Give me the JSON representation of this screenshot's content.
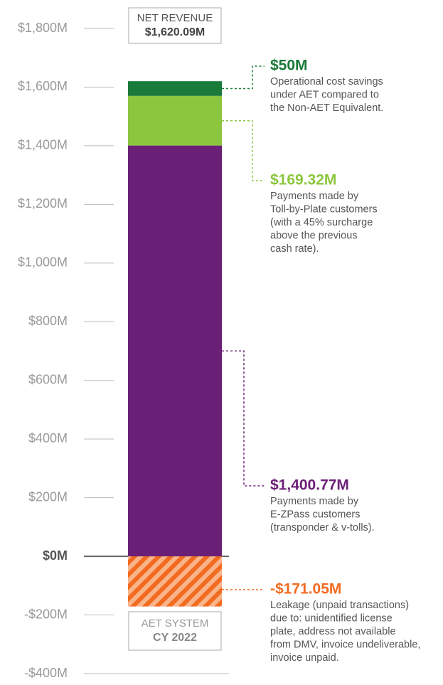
{
  "chart_data": {
    "type": "stacked-bar",
    "total_box": [
      "NET REVENUE",
      "$1,620.09M"
    ],
    "category_box": [
      "AET SYSTEM",
      "CY 2022"
    ],
    "ylim": [
      -400,
      1800
    ],
    "yticks": [
      {
        "value": -400,
        "label": "-$400M"
      },
      {
        "value": -200,
        "label": "-$200M"
      },
      {
        "value": 0,
        "label": "$0M"
      },
      {
        "value": 200,
        "label": "$200M"
      },
      {
        "value": 400,
        "label": "$400M"
      },
      {
        "value": 600,
        "label": "$600M"
      },
      {
        "value": 800,
        "label": "$800M"
      },
      {
        "value": 1000,
        "label": "$1,000M"
      },
      {
        "value": 1200,
        "label": "$1,200M"
      },
      {
        "value": 1400,
        "label": "$1,400M"
      },
      {
        "value": 1600,
        "label": "$1,600M"
      },
      {
        "value": 1800,
        "label": "$1,800M"
      }
    ],
    "series": [
      {
        "color": "#f26b21",
        "hatch": true,
        "values": [
          -171.05
        ],
        "value_labels": [
          "-$171.05M"
        ],
        "description": [
          "Leakage (unpaid transactions)",
          "due to: unidentified license",
          "plate, address not available",
          "from DMV, invoice undeliverable,",
          "invoice unpaid."
        ]
      },
      {
        "color": "#6b2077",
        "values": [
          1400.77
        ],
        "value_labels": [
          "$1,400.77M"
        ],
        "description": [
          "Payments made by",
          "E-ZPass customers",
          "(transponder & v-tolls)."
        ]
      },
      {
        "color": "#8cc63f",
        "values": [
          169.32
        ],
        "value_labels": [
          "$169.32M"
        ],
        "description": [
          "Payments made by",
          "Toll-by-Plate customers",
          "(with a 45% surcharge",
          "above the previous",
          "cash rate)."
        ]
      },
      {
        "color": "#1a7a3a",
        "values": [
          50
        ],
        "value_labels": [
          "$50M"
        ],
        "description": [
          "Operational cost savings",
          "under AET compared to",
          "the Non-AET Equivalent."
        ]
      }
    ]
  }
}
